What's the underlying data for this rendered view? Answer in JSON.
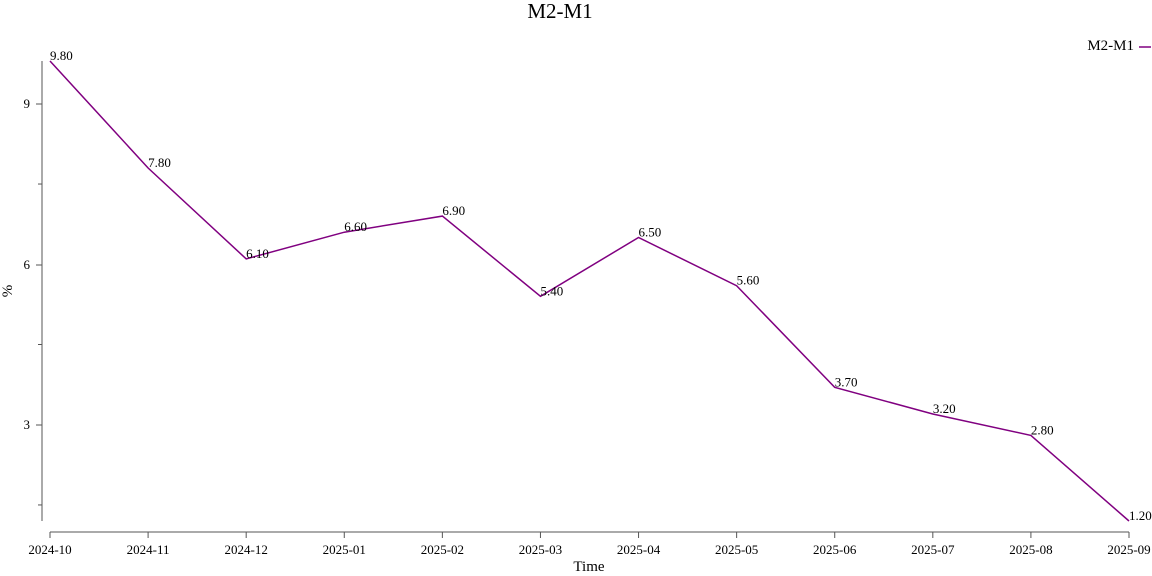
{
  "chart_data": {
    "type": "line",
    "title": "M2-M1",
    "xlabel": "Time",
    "ylabel": "%",
    "categories": [
      "2024-10",
      "2024-11",
      "2024-12",
      "2025-01",
      "2025-02",
      "2025-03",
      "2025-04",
      "2025-05",
      "2025-06",
      "2025-07",
      "2025-08",
      "2025-09"
    ],
    "series": [
      {
        "name": "M2-M1",
        "color": "#800080",
        "values": [
          9.8,
          7.8,
          6.1,
          6.6,
          6.9,
          5.4,
          6.5,
          5.6,
          3.7,
          3.2,
          2.8,
          1.2
        ],
        "labels": [
          "9.80",
          "7.80",
          "6.10",
          "6.60",
          "6.90",
          "5.40",
          "6.50",
          "5.60",
          "3.70",
          "3.20",
          "2.80",
          "1.20"
        ]
      }
    ],
    "y_ticks": [
      "3",
      "6",
      "9"
    ],
    "ylim": [
      1.2,
      9.8
    ],
    "legend_position": "top-right",
    "grid": false
  }
}
